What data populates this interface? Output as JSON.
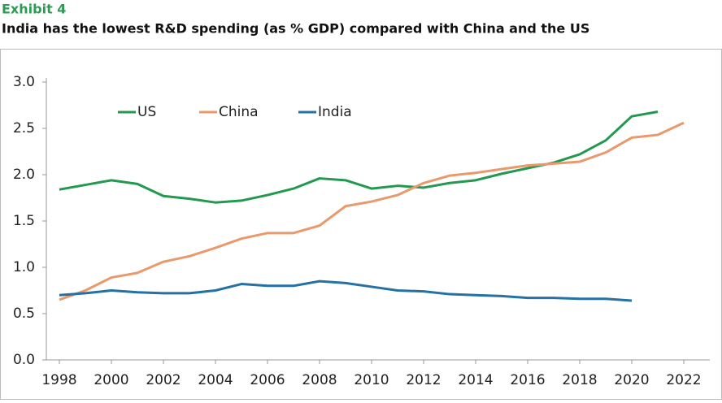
{
  "chart_data": {
    "type": "line",
    "title": "Exhibit 4",
    "subtitle": "India has the lowest R&D spending (as % GDP) compared with China and the US",
    "x": [
      1998,
      1999,
      2000,
      2001,
      2002,
      2003,
      2004,
      2005,
      2006,
      2007,
      2008,
      2009,
      2010,
      2011,
      2012,
      2013,
      2014,
      2015,
      2016,
      2017,
      2018,
      2019,
      2020,
      2021,
      2022
    ],
    "series": [
      {
        "name": "US",
        "color": "#23994f",
        "values": [
          1.84,
          1.89,
          1.94,
          1.9,
          1.77,
          1.74,
          1.7,
          1.72,
          1.78,
          1.85,
          1.96,
          1.94,
          1.85,
          1.88,
          1.86,
          1.91,
          1.94,
          2.01,
          2.07,
          2.13,
          2.22,
          2.37,
          2.63,
          2.68,
          null
        ]
      },
      {
        "name": "China",
        "color": "#e9996b",
        "values": [
          0.65,
          0.75,
          0.89,
          0.94,
          1.06,
          1.12,
          1.21,
          1.31,
          1.37,
          1.37,
          1.45,
          1.66,
          1.71,
          1.78,
          1.91,
          1.99,
          2.02,
          2.06,
          2.1,
          2.12,
          2.14,
          2.24,
          2.4,
          2.43,
          2.56
        ]
      },
      {
        "name": "India",
        "color": "#2571a3",
        "values": [
          0.7,
          0.72,
          0.75,
          0.73,
          0.72,
          0.72,
          0.75,
          0.82,
          0.8,
          0.8,
          0.85,
          0.83,
          0.79,
          0.75,
          0.74,
          0.71,
          0.7,
          0.69,
          0.67,
          0.67,
          0.66,
          0.66,
          0.64,
          null,
          null
        ]
      }
    ],
    "xlim": [
      1997.5,
      2023
    ],
    "xticks": [
      1998,
      2000,
      2002,
      2004,
      2006,
      2008,
      2010,
      2012,
      2014,
      2016,
      2018,
      2020,
      2022
    ],
    "ylim": [
      0,
      3
    ],
    "yticks": [
      {
        "value": 0,
        "label": "0.0"
      },
      {
        "value": 0.5,
        "label": "0.5"
      },
      {
        "value": 1,
        "label": "1.0"
      },
      {
        "value": 1.5,
        "label": "1.5"
      },
      {
        "value": 2,
        "label": "2.0"
      },
      {
        "value": 2.5,
        "label": "2.5"
      },
      {
        "value": 3,
        "label": "3.0"
      }
    ],
    "grid": false,
    "legend": "top-left"
  }
}
